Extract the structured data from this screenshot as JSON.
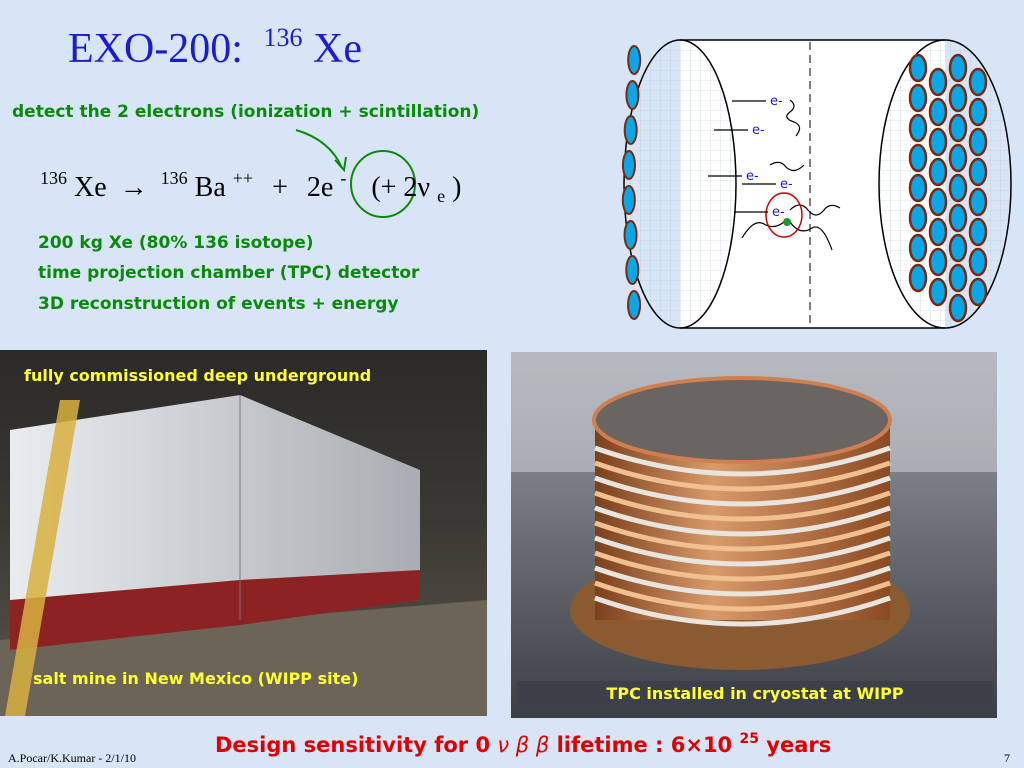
{
  "title": {
    "label": "EXO-200:",
    "isotope": "136",
    "element": "Xe"
  },
  "subtitle": "detect the 2 electrons (ionization + scintillation)",
  "reaction": {
    "xe_mass": "136",
    "xe": "Xe",
    "arrow": "→",
    "ba_mass": "136",
    "ba": "Ba",
    "ba_charge": "++",
    "plus": "+",
    "electrons": "2e",
    "electron_charge": "-",
    "neutrinos": "(+ 2ν",
    "neutrino_flavor": "e",
    "close": ")"
  },
  "facts": [
    "200 kg Xe (80% 136 isotope)",
    "time projection chamber (TPC) detector",
    "3D reconstruction of events + energy"
  ],
  "diagram": {
    "electron_labels": [
      "e-",
      "e-",
      "e-",
      "e-",
      "e-"
    ]
  },
  "photos": [
    {
      "caption_top": "fully commissioned deep underground",
      "caption_bottom": "salt mine in New Mexico (WIPP site)"
    },
    {
      "caption": "TPC installed in cryostat at WIPP"
    }
  ],
  "sensitivity": {
    "text": "Design sensitivity for 0",
    "process": "ν β β",
    "lifetime": " lifetime : 6×10",
    "exponent": "25",
    "unit": " years"
  },
  "footer": {
    "author": "A.Pocar/K.Kumar - 2/1/10",
    "page": "7"
  }
}
